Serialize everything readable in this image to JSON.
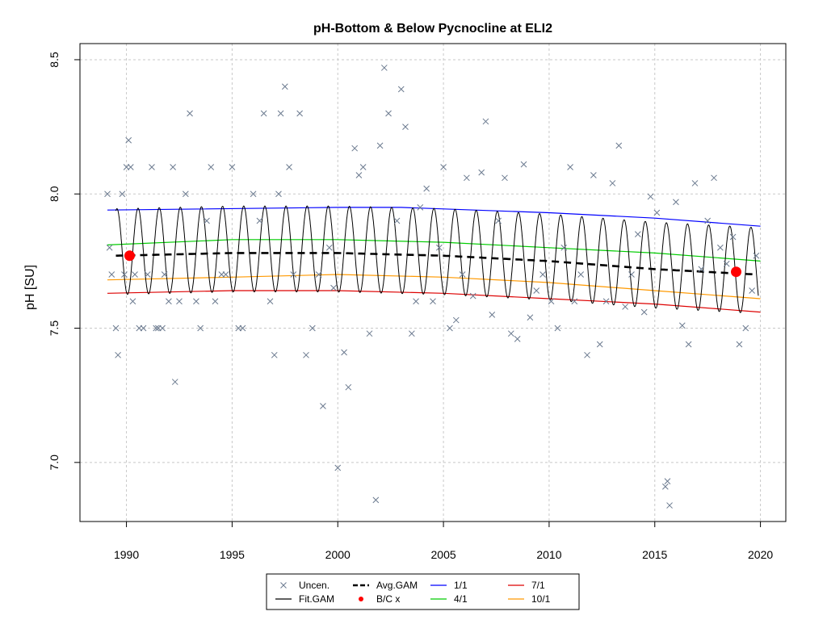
{
  "chart_data": {
    "type": "scatter",
    "title": "pH-Bottom & Below Pycnocline at ELI2",
    "xlabel": "",
    "ylabel": "pH [SU]",
    "xlim": [
      1987.8,
      2021.2
    ],
    "ylim": [
      6.78,
      8.56
    ],
    "xticks": [
      1990,
      1995,
      2000,
      2005,
      2010,
      2015,
      2020
    ],
    "yticks": [
      7.0,
      7.5,
      8.0,
      8.5
    ],
    "ytick_labels": [
      "7.0",
      "7.5",
      "8.0",
      "8.5"
    ],
    "grid": true,
    "legend_position": "bottom",
    "legend": {
      "items": [
        {
          "label": "Uncen.",
          "symbol": "x",
          "color": "#6b7a8f"
        },
        {
          "label": "Fit.GAM",
          "symbol": "line",
          "color": "#000000"
        },
        {
          "label": "Avg.GAM",
          "symbol": "dashed",
          "color": "#000000"
        },
        {
          "label": "B/C x",
          "symbol": "dot",
          "color": "#ff0000"
        },
        {
          "label": "1/1",
          "symbol": "line",
          "color": "#0000ff"
        },
        {
          "label": "4/1",
          "symbol": "line",
          "color": "#00cc00"
        },
        {
          "label": "7/1",
          "symbol": "line",
          "color": "#dd0000"
        },
        {
          "label": "10/1",
          "symbol": "line",
          "color": "#ff9900"
        }
      ]
    },
    "series": [
      {
        "name": "1/1",
        "color": "#0000ff",
        "x": [
          1989.1,
          2000,
          2003,
          2010,
          2015,
          2020
        ],
        "y": [
          7.94,
          7.95,
          7.95,
          7.93,
          7.91,
          7.88
        ]
      },
      {
        "name": "4/1",
        "color": "#00cc00",
        "x": [
          1989.1,
          1995,
          2000,
          2005,
          2010,
          2015,
          2020
        ],
        "y": [
          7.81,
          7.83,
          7.83,
          7.82,
          7.8,
          7.78,
          7.75
        ]
      },
      {
        "name": "10/1",
        "color": "#ff9900",
        "x": [
          1989.1,
          1995,
          2000,
          2005,
          2010,
          2015,
          2020
        ],
        "y": [
          7.68,
          7.69,
          7.7,
          7.69,
          7.67,
          7.64,
          7.61
        ]
      },
      {
        "name": "7/1",
        "color": "#dd0000",
        "x": [
          1989.1,
          1995,
          2000,
          2005,
          2010,
          2015,
          2020
        ],
        "y": [
          7.63,
          7.64,
          7.64,
          7.63,
          7.61,
          7.59,
          7.56
        ]
      },
      {
        "name": "Avg.GAM",
        "color": "#000000",
        "x": [
          1989.5,
          1995,
          2000,
          2005,
          2010,
          2015,
          2019.8
        ],
        "y": [
          7.77,
          7.78,
          7.78,
          7.77,
          7.75,
          7.72,
          7.7
        ]
      }
    ],
    "fit_gam": {
      "name": "Fit.GAM",
      "color": "#000000",
      "x_start": 1989.5,
      "x_end": 2019.9,
      "cycles_per_year": 1,
      "low_offset": -0.145,
      "high_offset": 0.175
    },
    "bc_points": {
      "name": "B/C x",
      "color": "#ff0000",
      "x": [
        1990.15,
        2018.85
      ],
      "y": [
        7.77,
        7.71
      ]
    },
    "uncensored": {
      "name": "Uncen.",
      "color": "#6b7a8f",
      "x": [
        1989.1,
        1989.2,
        1989.3,
        1989.5,
        1989.6,
        1989.8,
        1989.9,
        1990.0,
        1990.1,
        1990.2,
        1990.3,
        1990.4,
        1990.6,
        1990.8,
        1991.0,
        1991.2,
        1991.4,
        1991.5,
        1991.7,
        1991.8,
        1992.0,
        1992.2,
        1992.3,
        1992.5,
        1992.8,
        1993.0,
        1993.3,
        1993.5,
        1993.8,
        1994.0,
        1994.2,
        1994.5,
        1994.7,
        1995.0,
        1995.3,
        1995.5,
        1996.0,
        1996.3,
        1996.5,
        1996.8,
        1997.0,
        1997.2,
        1997.3,
        1997.5,
        1997.7,
        1997.9,
        1998.2,
        1998.5,
        1998.8,
        1999.1,
        1999.3,
        1999.6,
        1999.8,
        2000.0,
        2000.3,
        2000.5,
        2000.8,
        2001.0,
        2001.2,
        2001.5,
        2001.8,
        2002.0,
        2002.2,
        2002.4,
        2002.8,
        2003.0,
        2003.2,
        2003.5,
        2003.7,
        2003.9,
        2004.2,
        2004.5,
        2004.8,
        2005.0,
        2005.3,
        2005.6,
        2005.9,
        2006.1,
        2006.4,
        2006.8,
        2007.0,
        2007.3,
        2007.6,
        2007.9,
        2008.2,
        2008.5,
        2008.8,
        2009.1,
        2009.4,
        2009.7,
        2010.1,
        2010.4,
        2010.7,
        2011.0,
        2011.2,
        2011.5,
        2011.8,
        2012.1,
        2012.4,
        2012.7,
        2013.0,
        2013.3,
        2013.6,
        2013.9,
        2014.2,
        2014.5,
        2014.8,
        2015.1,
        2015.5,
        2015.6,
        2015.7,
        2016.0,
        2016.3,
        2016.6,
        2016.9,
        2017.2,
        2017.5,
        2017.8,
        2018.1,
        2018.4,
        2018.7,
        2019.0,
        2019.3,
        2019.6,
        2019.8
      ],
      "y": [
        8.0,
        7.8,
        7.7,
        7.5,
        7.4,
        8.0,
        7.7,
        8.1,
        8.2,
        8.1,
        7.6,
        7.7,
        7.5,
        7.5,
        7.7,
        8.1,
        7.5,
        7.5,
        7.5,
        7.7,
        7.6,
        8.1,
        7.3,
        7.6,
        8.0,
        8.3,
        7.6,
        7.5,
        7.9,
        8.1,
        7.6,
        7.7,
        7.7,
        8.1,
        7.5,
        7.5,
        8.0,
        7.9,
        8.3,
        7.6,
        7.4,
        8.0,
        8.3,
        8.4,
        8.1,
        7.7,
        8.3,
        7.4,
        7.5,
        7.7,
        7.21,
        7.8,
        7.65,
        6.98,
        7.41,
        7.28,
        8.17,
        8.07,
        8.1,
        7.48,
        6.86,
        8.18,
        8.47,
        8.3,
        7.9,
        8.39,
        8.25,
        7.48,
        7.6,
        7.95,
        8.02,
        7.6,
        7.8,
        8.1,
        7.5,
        7.53,
        7.7,
        8.06,
        7.62,
        8.08,
        8.27,
        7.55,
        7.9,
        8.06,
        7.48,
        7.46,
        8.11,
        7.54,
        7.64,
        7.7,
        7.6,
        7.5,
        7.8,
        8.1,
        7.6,
        7.7,
        7.4,
        8.07,
        7.44,
        7.6,
        8.04,
        8.18,
        7.58,
        7.7,
        7.85,
        7.56,
        7.99,
        7.93,
        6.91,
        6.93,
        6.84,
        7.97,
        7.51,
        7.44,
        8.04,
        7.72,
        7.9,
        8.06,
        7.8,
        7.74,
        7.84,
        7.44,
        7.5,
        7.64,
        7.77
      ]
    }
  }
}
